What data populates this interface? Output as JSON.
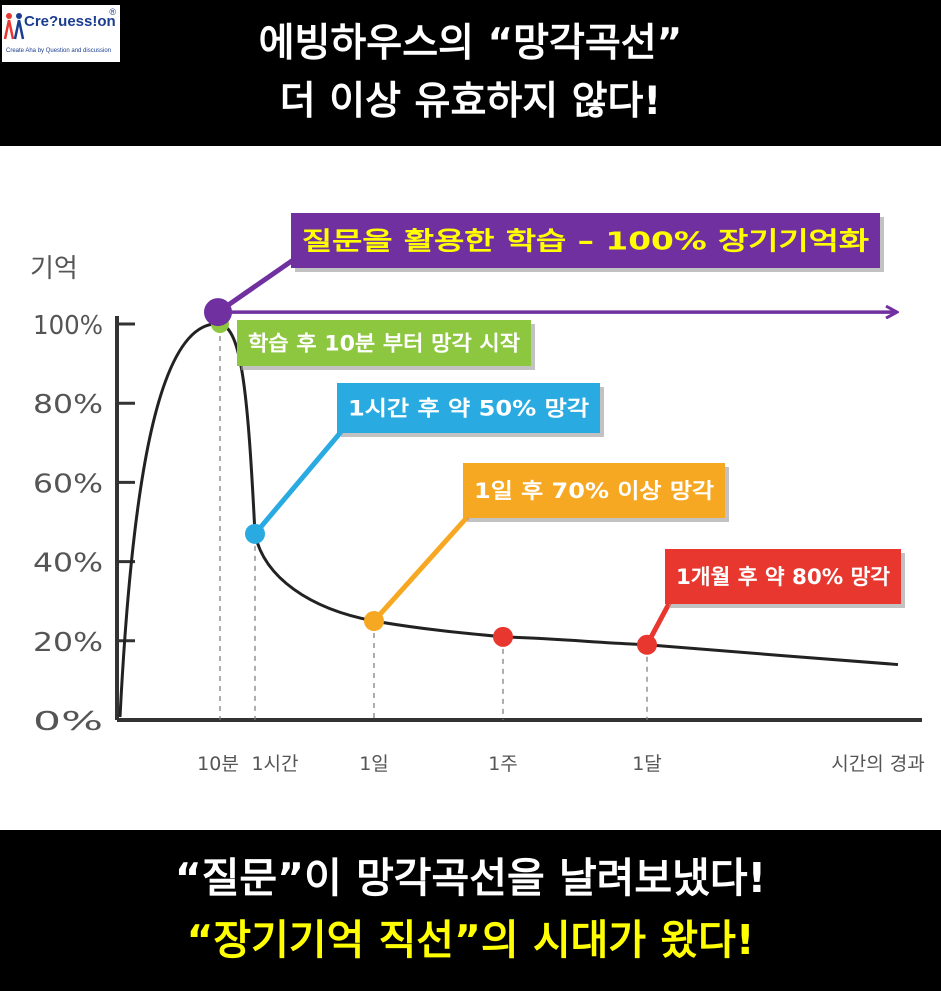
{
  "logo": {
    "name": "Cre?uess!on",
    "tagline": "Create Aha by Question and discussion",
    "reg": "®"
  },
  "header": {
    "line1": "에빙하우스의 “망각곡선”",
    "line2": "더 이상 유효하지 않다!"
  },
  "footer": {
    "line1": "“질문”이 망각곡선을 날려보냈다!",
    "line2": "“장기기억 직선”의 시대가 왔다!"
  },
  "colors": {
    "band": "#000000",
    "header_text": "#ffffff",
    "footer_highlight": "#ffff00",
    "purple": "#7030a0",
    "green": "#8dc63f",
    "blue": "#29abe2",
    "orange": "#f7a823",
    "red": "#e8372e",
    "curve": "#222222"
  },
  "chart_data": {
    "type": "line",
    "ylabel": "기억",
    "xlabel": "시간의 경과",
    "yticks": [
      "100%",
      "80%",
      "60%",
      "40%",
      "20%",
      "0%"
    ],
    "ylim": [
      0,
      100
    ],
    "x_tick_labels": [
      "10분",
      "1시간",
      "1일",
      "1주",
      "1달"
    ],
    "forgetting_curve": {
      "points": [
        {
          "x": "10분",
          "y": 100
        },
        {
          "x": "1시간",
          "y": 47
        },
        {
          "x": "1일",
          "y": 25
        },
        {
          "x": "1주",
          "y": 21
        },
        {
          "x": "1달",
          "y": 19
        }
      ],
      "end_y": 14
    },
    "question_line": {
      "y": 103,
      "arrow": true
    },
    "annotations": [
      {
        "text": "질문을 활용한 학습 – 100% 장기기억화",
        "color": "#7030a0",
        "text_color": "#ffff00"
      },
      {
        "text": "학습 후 10분 부터 망각 시작",
        "color": "#8dc63f",
        "text_color": "#ffffff"
      },
      {
        "text": "1시간 후 약 50% 망각",
        "color": "#29abe2",
        "text_color": "#ffffff"
      },
      {
        "text": "1일 후 70% 이상 망각",
        "color": "#f7a823",
        "text_color": "#ffffff"
      },
      {
        "text": "1개월 후 약 80% 망각",
        "color": "#e8372e",
        "text_color": "#ffffff"
      }
    ]
  }
}
